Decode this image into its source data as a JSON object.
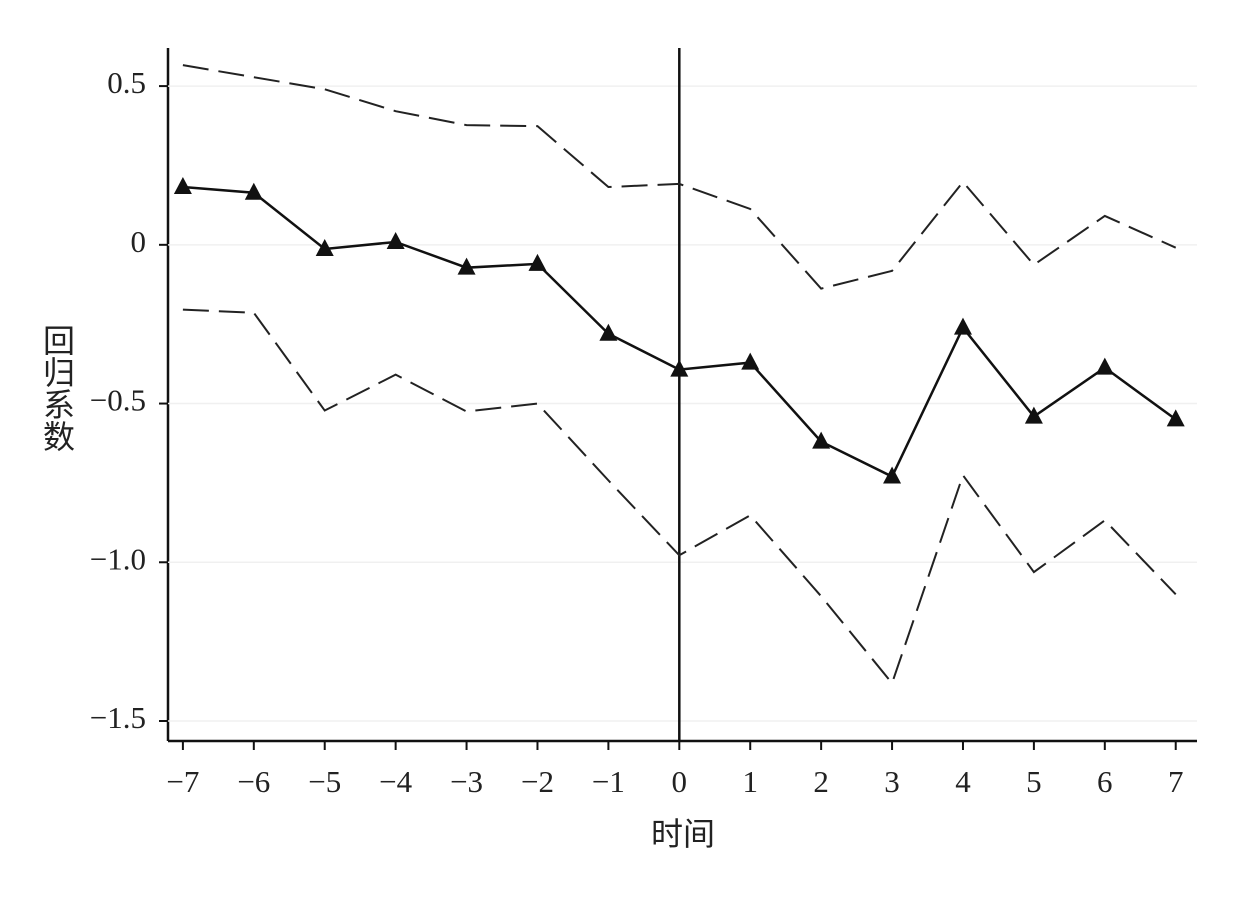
{
  "chart_data": {
    "type": "line",
    "x_label": "时间",
    "y_label": "回归系数",
    "x": [
      -7,
      -6,
      -5,
      -4,
      -3,
      -2,
      -1,
      0,
      1,
      2,
      3,
      4,
      5,
      6,
      7
    ],
    "series": [
      {
        "color": "#111111",
        "style": "solid",
        "marker": "triangle",
        "values": [
          0.182,
          0.164,
          -0.013,
          0.009,
          -0.072,
          -0.06,
          -0.28,
          -0.393,
          -0.371,
          -0.62,
          -0.73,
          -0.261,
          -0.541,
          -0.387,
          -0.55
        ]
      },
      {
        "color": "#222222",
        "style": "dashed",
        "values": [
          0.566,
          0.528,
          0.49,
          0.421,
          0.377,
          0.374,
          0.182,
          0.192,
          0.113,
          -0.138,
          -0.082,
          0.198,
          -0.063,
          0.091,
          -0.009
        ]
      },
      {
        "color": "#222222",
        "style": "dashed",
        "values": [
          -0.204,
          -0.214,
          -0.522,
          -0.409,
          -0.525,
          -0.5,
          -0.742,
          -0.978,
          -0.852,
          -1.107,
          -1.381,
          -0.726,
          -1.031,
          -0.868,
          -1.101
        ]
      }
    ],
    "xlim": [
      -7.21,
      7.3
    ],
    "ylim": [
      -1.563,
      0.62
    ],
    "xticks": [
      {
        "value": -7,
        "label": "−7"
      },
      {
        "value": -6,
        "label": "−6"
      },
      {
        "value": -5,
        "label": "−5"
      },
      {
        "value": -4,
        "label": "−4"
      },
      {
        "value": -3,
        "label": "−3"
      },
      {
        "value": -2,
        "label": "−2"
      },
      {
        "value": -1,
        "label": "−1"
      },
      0,
      1,
      2,
      3,
      4,
      5,
      6,
      7
    ],
    "yticks": [
      {
        "value": -1.5,
        "label": "−1.5"
      },
      {
        "value": -1.0,
        "label": "−1.0"
      },
      {
        "value": -0.5,
        "label": "−0.5"
      },
      0,
      0.5
    ],
    "vline": 0,
    "grid": true
  }
}
